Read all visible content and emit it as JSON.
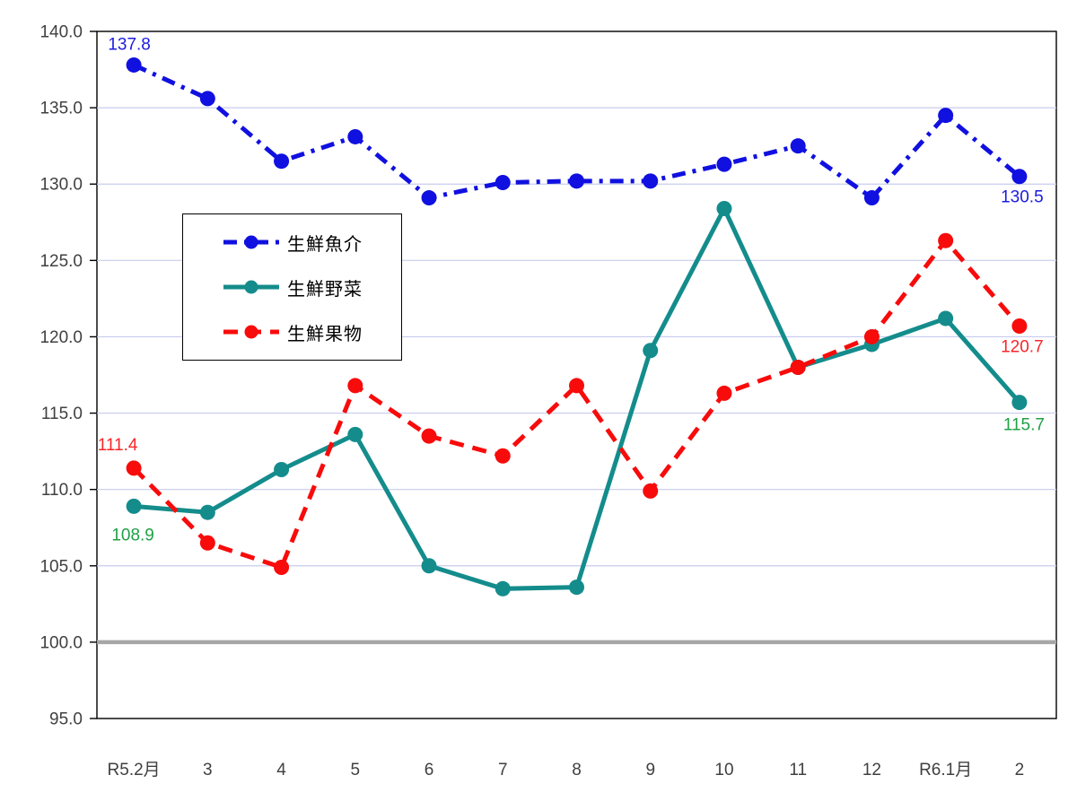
{
  "chart_data": {
    "type": "line",
    "title": "",
    "xlabel": "",
    "ylabel": "",
    "ylim": [
      95.0,
      140.0
    ],
    "ytick_step": 5,
    "ytick_format_decimals": 1,
    "baseline_value": 100.0,
    "grid": true,
    "legend_position": "inside-upper-left",
    "categories": [
      "R5.2月",
      "3",
      "4",
      "5",
      "6",
      "7",
      "8",
      "9",
      "10",
      "11",
      "12",
      "R6.1月",
      "2"
    ],
    "series": [
      {
        "id": "fish",
        "name": "生鮮魚介",
        "color": "#1010E0",
        "label_color": "#1C1CE0",
        "dash": "dashdot",
        "values": [
          137.8,
          135.6,
          131.5,
          133.1,
          129.1,
          130.1,
          130.2,
          130.2,
          131.3,
          132.5,
          129.1,
          134.5,
          130.5
        ],
        "labels": [
          {
            "index": 0,
            "text": "137.8",
            "dx": -5,
            "dy": -17
          },
          {
            "index": 12,
            "text": "130.5",
            "dx": 3,
            "dy": 29
          }
        ]
      },
      {
        "id": "vegetables",
        "name": "生鮮野菜",
        "color": "#148C8C",
        "label_color": "#1FA046",
        "dash": "solid",
        "values": [
          108.9,
          108.5,
          111.3,
          113.6,
          105.0,
          103.5,
          103.6,
          119.1,
          128.4,
          118.0,
          119.5,
          121.2,
          115.7
        ],
        "labels": [
          {
            "index": 0,
            "text": "108.9",
            "dx": -1,
            "dy": 38
          },
          {
            "index": 12,
            "text": "115.7",
            "dx": 5,
            "dy": 31
          }
        ]
      },
      {
        "id": "fruits",
        "name": "生鮮果物",
        "color": "#F80B0B",
        "label_color": "#F8262A",
        "dash": "dash",
        "values": [
          111.4,
          106.5,
          104.9,
          116.8,
          113.5,
          112.2,
          116.8,
          109.9,
          116.3,
          118.0,
          120.0,
          126.3,
          120.7
        ],
        "labels": [
          {
            "index": 0,
            "text": "111.4",
            "dx": -18,
            "dy": -20
          },
          {
            "index": 12,
            "text": "120.7",
            "dx": 3,
            "dy": 29
          }
        ]
      }
    ],
    "colors": {
      "gridline": "#C8CCEE",
      "baseline": "#A6A6A6",
      "axis": "#000000",
      "tick_text": "#404040"
    }
  }
}
